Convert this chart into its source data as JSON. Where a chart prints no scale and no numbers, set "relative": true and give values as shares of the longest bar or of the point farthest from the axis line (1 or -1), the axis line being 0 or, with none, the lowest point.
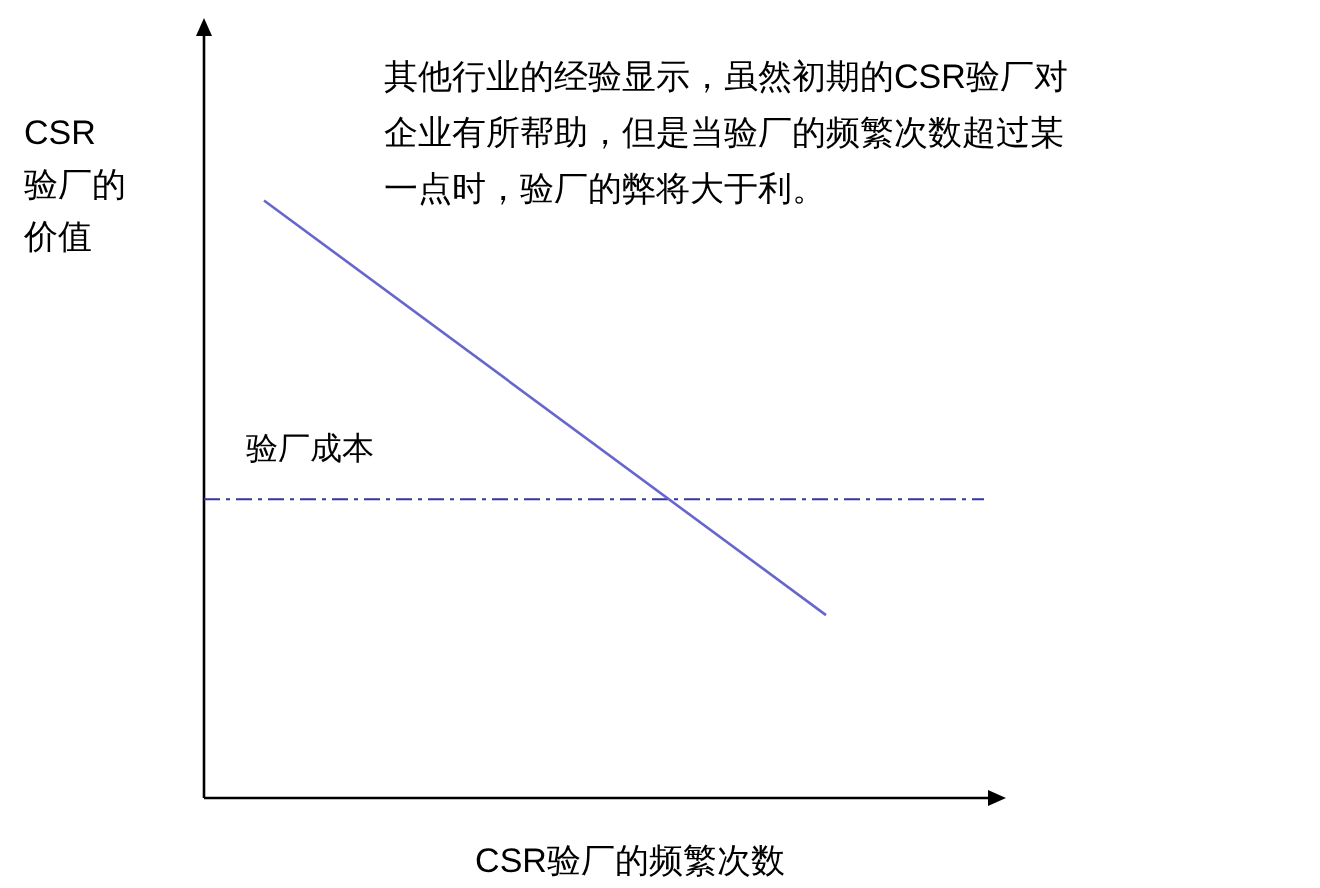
{
  "chart_data": {
    "type": "line",
    "relative": true,
    "xlabel": "CSR验厂的频繁次数",
    "ylabel": "CSR验厂的价值",
    "annotations": [
      "其他行业的经验显示，虽然初期的CSR验厂对企业有所帮助，但是当验厂的频繁次数超过某一点时，验厂的弊将大于利。"
    ],
    "categories": [
      null,
      null
    ],
    "series": [
      {
        "color": "#6666cc",
        "values": [
          1,
          0.306
        ]
      }
    ],
    "ref_lines": [
      {
        "axis": "y",
        "value": 0.5,
        "label": "验厂成本",
        "color": "#3333aa",
        "line_style": "dashdot"
      }
    ],
    "marker": "none",
    "line_style": "solid"
  }
}
